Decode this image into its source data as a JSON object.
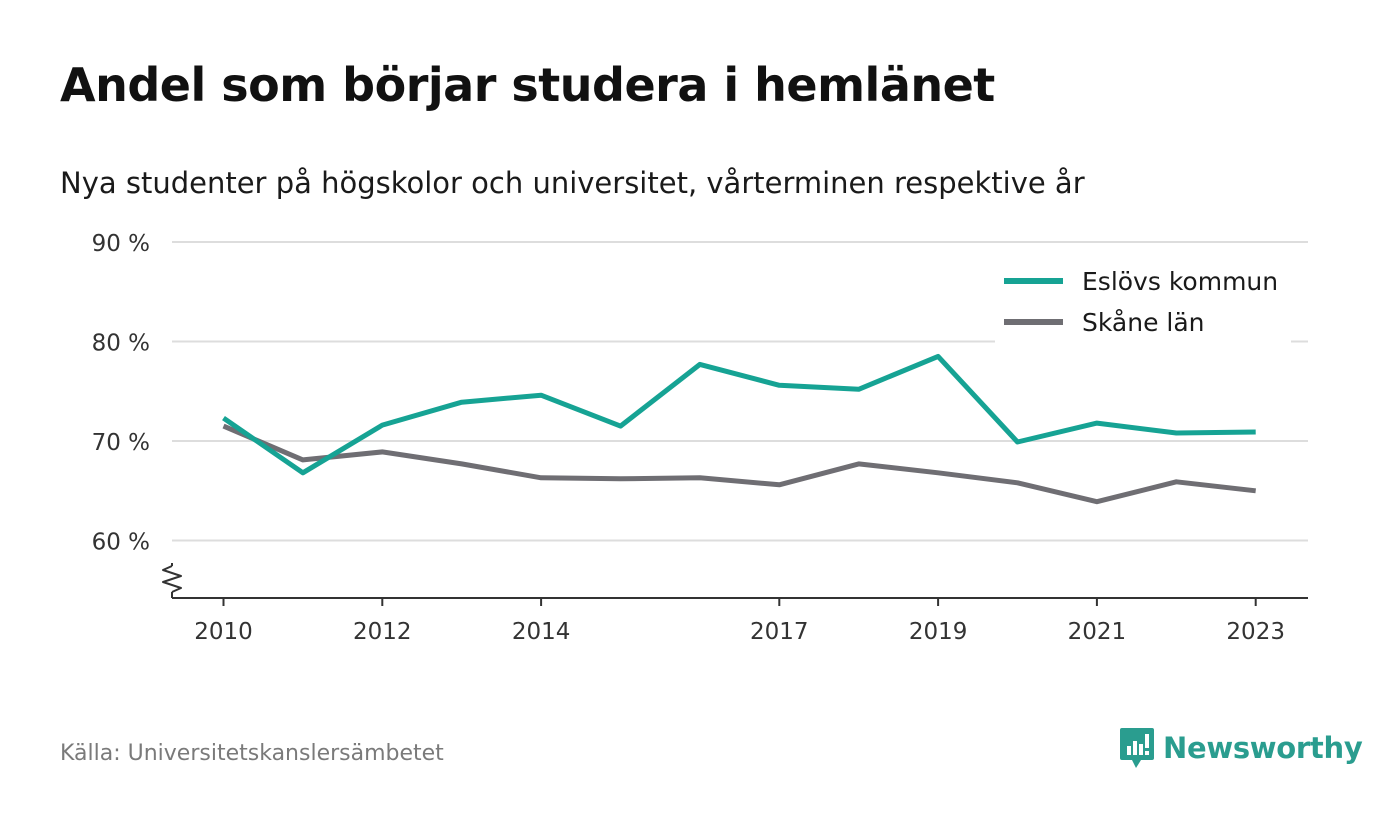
{
  "title": "Andel som börjar studera i hemlänet",
  "subtitle": "Nya studenter på högskolor och universitet, vårterminen respektive år",
  "source": "Källa: Universitetskanslersämbetet",
  "brand": {
    "name": "Newsworthy",
    "color": "#2a9d8f"
  },
  "chart_data": {
    "type": "line",
    "x": [
      2010,
      2011,
      2012,
      2013,
      2014,
      2015,
      2016,
      2017,
      2018,
      2019,
      2020,
      2021,
      2022,
      2023
    ],
    "x_ticks": [
      "2010",
      "2012",
      "2014",
      "2017",
      "2019",
      "2021",
      "2023"
    ],
    "y_ticks": [
      "60 %",
      "70 %",
      "80 %",
      "90 %"
    ],
    "y_tick_values": [
      60,
      70,
      80,
      90
    ],
    "ylim": [
      54.2,
      90
    ],
    "grid": true,
    "y_axis_break": true,
    "legend_position": "top-right",
    "series": [
      {
        "name": "Eslövs kommun",
        "color": "#16a394",
        "values": [
          72.3,
          66.8,
          71.6,
          73.9,
          74.6,
          71.5,
          77.7,
          75.6,
          75.2,
          78.5,
          69.9,
          71.8,
          70.8,
          70.9
        ]
      },
      {
        "name": "Skåne län",
        "color": "#6f6e73",
        "values": [
          71.5,
          68.1,
          68.9,
          67.7,
          66.3,
          66.2,
          66.3,
          65.6,
          67.7,
          66.8,
          65.8,
          63.9,
          65.9,
          65.0
        ]
      }
    ]
  }
}
